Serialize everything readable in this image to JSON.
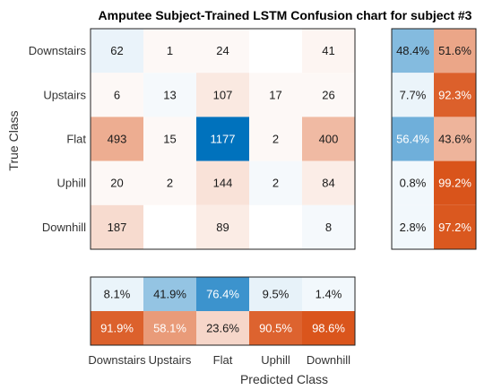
{
  "chart_data": {
    "type": "heatmap",
    "title": "Amputee Subject-Trained LSTM Confusion chart for subject #3",
    "xlabel": "Predicted Class",
    "ylabel": "True Class",
    "classes": [
      "Downstairs",
      "Upstairs",
      "Flat",
      "Uphill",
      "Downhill"
    ],
    "matrix": [
      [
        62,
        1,
        24,
        null,
        41
      ],
      [
        6,
        13,
        107,
        17,
        26
      ],
      [
        493,
        15,
        1177,
        2,
        400
      ],
      [
        20,
        2,
        144,
        2,
        84
      ],
      [
        187,
        null,
        89,
        null,
        8
      ]
    ],
    "row_summary": [
      [
        "48.4%",
        "51.6%"
      ],
      [
        "7.7%",
        "92.3%"
      ],
      [
        "56.4%",
        "43.6%"
      ],
      [
        "0.8%",
        "99.2%"
      ],
      [
        "2.8%",
        "97.2%"
      ]
    ],
    "column_summary": {
      "correct": [
        "8.1%",
        "41.9%",
        "76.4%",
        "9.5%",
        "1.4%"
      ],
      "incorrect": [
        "91.9%",
        "58.1%",
        "23.6%",
        "90.5%",
        "98.6%"
      ]
    },
    "colors": {
      "correct": "#0072BD",
      "incorrect": "#D95319",
      "border": "#222222"
    }
  }
}
